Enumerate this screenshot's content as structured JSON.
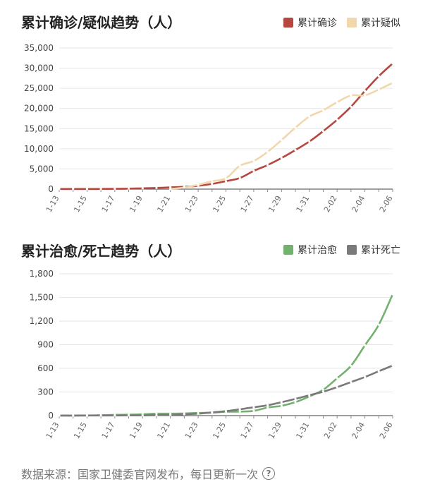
{
  "chart_data": [
    {
      "type": "line",
      "title": "累计确诊/疑似趋势（人）",
      "xlabel": "",
      "ylabel": "",
      "ylim": [
        0,
        35000
      ],
      "yticks": [
        "0",
        "5,000",
        "10,000",
        "15,000",
        "20,000",
        "25,000",
        "30,000",
        "35,000"
      ],
      "x": [
        "1-13",
        "1-14",
        "1-15",
        "1-16",
        "1-17",
        "1-18",
        "1-19",
        "1-20",
        "1-21",
        "1-22",
        "1-23",
        "1-24",
        "1-25",
        "1-26",
        "1-27",
        "1-28",
        "1-29",
        "1-30",
        "1-31",
        "2-01",
        "2-02",
        "2-03",
        "2-04",
        "2-05",
        "2-06"
      ],
      "xtick_labels": [
        "1-13",
        "1-15",
        "1-17",
        "1-19",
        "1-21",
        "1-23",
        "1-25",
        "1-27",
        "1-29",
        "1-31",
        "2-02",
        "2-04",
        "2-06"
      ],
      "legend": "top-right",
      "grid": "horizontal",
      "series": [
        {
          "name": "累计确诊",
          "color": "#b5473f",
          "values": [
            41,
            41,
            41,
            45,
            62,
            121,
            198,
            291,
            440,
            571,
            830,
            1287,
            1975,
            2744,
            4515,
            5974,
            7711,
            9692,
            11791,
            14380,
            17205,
            20438,
            24324,
            28018,
            31161
          ]
        },
        {
          "name": "累计疑似",
          "color": "#f1d7ab",
          "values": [
            null,
            null,
            null,
            null,
            null,
            null,
            null,
            null,
            37,
            393,
            1072,
            1965,
            2684,
            5794,
            6973,
            9239,
            12167,
            15238,
            17988,
            19544,
            21558,
            23214,
            23260,
            24702,
            26359
          ]
        }
      ]
    },
    {
      "type": "line",
      "title": "累计治愈/死亡趋势（人）",
      "xlabel": "",
      "ylabel": "",
      "ylim": [
        0,
        1800
      ],
      "yticks": [
        "0",
        "300",
        "600",
        "900",
        "1,200",
        "1,500",
        "1,800"
      ],
      "x": [
        "1-13",
        "1-14",
        "1-15",
        "1-16",
        "1-17",
        "1-18",
        "1-19",
        "1-20",
        "1-21",
        "1-22",
        "1-23",
        "1-24",
        "1-25",
        "1-26",
        "1-27",
        "1-28",
        "1-29",
        "1-30",
        "1-31",
        "2-01",
        "2-02",
        "2-03",
        "2-04",
        "2-05",
        "2-06"
      ],
      "xtick_labels": [
        "1-13",
        "1-15",
        "1-17",
        "1-19",
        "1-21",
        "1-23",
        "1-25",
        "1-27",
        "1-29",
        "1-31",
        "2-02",
        "2-04",
        "2-06"
      ],
      "legend": "top-right",
      "grid": "horizontal",
      "series": [
        {
          "name": "累计治愈",
          "color": "#73b16f",
          "values": [
            0,
            1,
            2,
            5,
            10,
            12,
            17,
            25,
            25,
            28,
            34,
            38,
            49,
            51,
            60,
            103,
            124,
            171,
            243,
            328,
            475,
            632,
            892,
            1153,
            1540
          ]
        },
        {
          "name": "累计死亡",
          "color": "#7a7a7a",
          "values": [
            1,
            1,
            2,
            2,
            2,
            3,
            3,
            6,
            9,
            17,
            25,
            41,
            56,
            80,
            106,
            132,
            170,
            213,
            259,
            304,
            361,
            425,
            490,
            563,
            636
          ]
        }
      ]
    }
  ],
  "footer": {
    "text": "数据来源：国家卫健委官网发布，每日更新一次",
    "icon": "help-icon",
    "icon_glyph": "?"
  }
}
